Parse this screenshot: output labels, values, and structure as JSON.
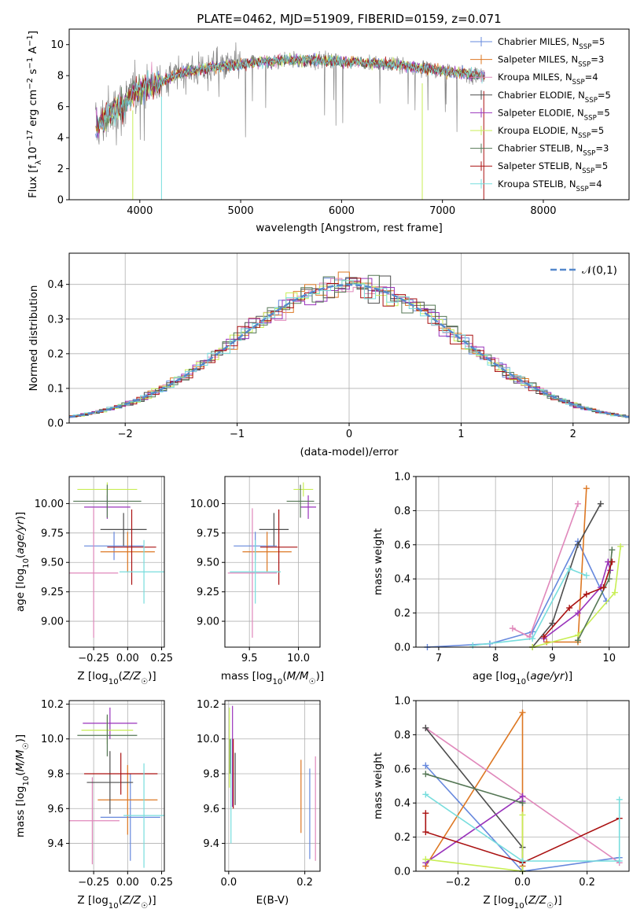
{
  "palette": {
    "chabrier_miles": "#6688dd",
    "salpeter_miles": "#dd7722",
    "kroupa_miles": "#e088bb",
    "chabrier_elodie": "#4d4d4d",
    "salpeter_elodie": "#9933bb",
    "kroupa_elodie": "#c8ee55",
    "chabrier_stelib": "#557755",
    "salpeter_stelib": "#aa1111",
    "kroupa_stelib": "#77dddd",
    "data_gray": "#888888",
    "normal": "#5588cc"
  },
  "chart_data": [
    {
      "id": "spectrum",
      "type": "line",
      "title": "PLATE=0462, MJD=51909, FIBERID=0159, z=0.071",
      "xlabel": "wavelength [Angstrom, rest frame]",
      "ylabel": "Flux [f_λ10^-17 erg cm^-2 s^-1 A^-1]",
      "xlim": [
        3300,
        8850
      ],
      "ylim": [
        0,
        11
      ],
      "xticks": [
        4000,
        5000,
        6000,
        7000,
        8000
      ],
      "yticks": [
        0,
        2,
        4,
        6,
        8,
        10
      ],
      "grid": false,
      "legend_position": "right",
      "legend": [
        {
          "key": "chabrier_miles",
          "label": "Chabrier MILES, N_SSP=5"
        },
        {
          "key": "salpeter_miles",
          "label": "Salpeter MILES, N_SSP=3"
        },
        {
          "key": "kroupa_miles",
          "label": "Kroupa MILES, N_SSP=4"
        },
        {
          "key": "chabrier_elodie",
          "label": "Chabrier ELODIE, N_SSP=5"
        },
        {
          "key": "salpeter_elodie",
          "label": "Salpeter ELODIE, N_SSP=5"
        },
        {
          "key": "kroupa_elodie",
          "label": "Kroupa ELODIE, N_SSP=5"
        },
        {
          "key": "chabrier_stelib",
          "label": "Chabrier STELIB, N_SSP=3"
        },
        {
          "key": "salpeter_stelib",
          "label": "Salpeter STELIB, N_SSP=5"
        },
        {
          "key": "kroupa_stelib",
          "label": "Kroupa STELIB, N_SSP=4"
        }
      ],
      "continuum": [
        [
          3560,
          4.6
        ],
        [
          3700,
          5.5
        ],
        [
          3850,
          6.2
        ],
        [
          3950,
          6.9
        ],
        [
          4050,
          7.3
        ],
        [
          4200,
          7.6
        ],
        [
          4400,
          8.2
        ],
        [
          4600,
          8.4
        ],
        [
          4800,
          8.6
        ],
        [
          5000,
          8.7
        ],
        [
          5200,
          8.9
        ],
        [
          5500,
          9.0
        ],
        [
          5800,
          9.0
        ],
        [
          6000,
          8.9
        ],
        [
          6300,
          8.8
        ],
        [
          6600,
          8.7
        ],
        [
          6900,
          8.4
        ],
        [
          7100,
          8.2
        ],
        [
          7300,
          8.1
        ],
        [
          7420,
          8.0
        ]
      ]
    },
    {
      "id": "residuals",
      "type": "histogram",
      "xlabel": "(data-model)/error",
      "ylabel": "Normed distribution",
      "xlim": [
        -2.5,
        2.5
      ],
      "ylim": [
        0,
        0.49
      ],
      "xticks": [
        -2,
        -1,
        0,
        1,
        2
      ],
      "yticks": [
        0.0,
        0.1,
        0.2,
        0.3,
        0.4
      ],
      "grid": true,
      "legend_position": "top-right",
      "legend_label": "𝒩(0,1)"
    },
    {
      "id": "age_vs_Z",
      "type": "errorbar",
      "xlabel": "Z [log10(Z/Z☉)]",
      "ylabel": "age [log10(age/yr)]",
      "xlim": [
        -0.43,
        0.27
      ],
      "ylim": [
        8.78,
        10.23
      ],
      "xticks": [
        -0.25,
        0.0,
        0.25
      ],
      "yticks": [
        9.0,
        9.25,
        9.5,
        9.75,
        10.0
      ],
      "grid": true,
      "points": [
        {
          "key": "chabrier_miles",
          "x": -0.1,
          "xerr": 0.22,
          "y": 9.64,
          "yerr": 0.12
        },
        {
          "key": "salpeter_miles",
          "x": 0.0,
          "xerr": 0.2,
          "y": 9.59,
          "yerr": 0.17
        },
        {
          "key": "kroupa_miles",
          "x": -0.25,
          "xerr": 0.18,
          "y": 9.41,
          "yerr": 0.55
        },
        {
          "key": "chabrier_elodie",
          "x": -0.03,
          "xerr": 0.17,
          "y": 9.78,
          "yerr": 0.14
        },
        {
          "key": "salpeter_elodie",
          "x": -0.15,
          "xerr": 0.17,
          "y": 9.97,
          "yerr": 0.1
        },
        {
          "key": "kroupa_elodie",
          "x": -0.15,
          "xerr": 0.22,
          "y": 10.12,
          "yerr": 0.06
        },
        {
          "key": "chabrier_stelib",
          "x": -0.15,
          "xerr": 0.25,
          "y": 10.02,
          "yerr": 0.14
        },
        {
          "key": "salpeter_stelib",
          "x": 0.03,
          "xerr": 0.18,
          "y": 9.63,
          "yerr": 0.32
        },
        {
          "key": "kroupa_stelib",
          "x": 0.12,
          "xerr": 0.18,
          "y": 9.42,
          "yerr": 0.27
        }
      ]
    },
    {
      "id": "age_vs_mass",
      "type": "errorbar",
      "xlabel": "mass [log10(M/M☉)]",
      "ylabel": "",
      "xlim": [
        9.25,
        10.22
      ],
      "ylim": [
        8.78,
        10.23
      ],
      "xticks": [
        9.5,
        10.0
      ],
      "yticks": [
        9.0,
        9.25,
        9.5,
        9.75,
        10.0
      ],
      "grid": true,
      "points": [
        {
          "key": "chabrier_miles",
          "x": 9.56,
          "xerr": 0.22,
          "y": 9.64,
          "yerr": 0.12
        },
        {
          "key": "salpeter_miles",
          "x": 9.68,
          "xerr": 0.25,
          "y": 9.59,
          "yerr": 0.17
        },
        {
          "key": "kroupa_miles",
          "x": 9.53,
          "xerr": 0.25,
          "y": 9.41,
          "yerr": 0.55
        },
        {
          "key": "chabrier_elodie",
          "x": 9.75,
          "xerr": 0.15,
          "y": 9.78,
          "yerr": 0.14
        },
        {
          "key": "salpeter_elodie",
          "x": 10.1,
          "xerr": 0.08,
          "y": 9.97,
          "yerr": 0.1
        },
        {
          "key": "kroupa_elodie",
          "x": 10.05,
          "xerr": 0.1,
          "y": 10.12,
          "yerr": 0.06
        },
        {
          "key": "chabrier_stelib",
          "x": 10.02,
          "xerr": 0.14,
          "y": 10.02,
          "yerr": 0.14
        },
        {
          "key": "salpeter_stelib",
          "x": 9.8,
          "xerr": 0.19,
          "y": 9.63,
          "yerr": 0.32
        },
        {
          "key": "kroupa_stelib",
          "x": 9.56,
          "xerr": 0.26,
          "y": 9.42,
          "yerr": 0.27
        }
      ]
    },
    {
      "id": "massweight_vs_age",
      "type": "line",
      "xlabel": "age [log10(age/yr)]",
      "ylabel": "mass weight",
      "xlim": [
        6.6,
        10.35
      ],
      "ylim": [
        0,
        1.0
      ],
      "xticks": [
        7,
        8,
        9,
        10
      ],
      "yticks": [
        0.0,
        0.2,
        0.4,
        0.6,
        0.8,
        1.0
      ],
      "grid": true,
      "series": [
        {
          "key": "chabrier_miles",
          "x": [
            6.8,
            7.9,
            8.65,
            9.45,
            9.95
          ],
          "y": [
            0.0,
            0.02,
            0.09,
            0.62,
            0.27
          ]
        },
        {
          "key": "salpeter_miles",
          "x": [
            8.9,
            9.45,
            9.6
          ],
          "y": [
            0.03,
            0.03,
            0.93
          ]
        },
        {
          "key": "kroupa_miles",
          "x": [
            8.3,
            8.6,
            9.45
          ],
          "y": [
            0.11,
            0.06,
            0.84
          ]
        },
        {
          "key": "chabrier_elodie",
          "x": [
            8.65,
            9.0,
            9.45,
            9.85
          ],
          "y": [
            0.0,
            0.14,
            0.6,
            0.84
          ]
        },
        {
          "key": "salpeter_elodie",
          "x": [
            8.85,
            9.45,
            9.85,
            9.98,
            10.02
          ],
          "y": [
            0.05,
            0.2,
            0.35,
            0.5,
            0.45
          ]
        },
        {
          "key": "kroupa_elodie",
          "x": [
            8.65,
            9.45,
            10.1,
            10.2
          ],
          "y": [
            0.0,
            0.07,
            0.32,
            0.59
          ]
        },
        {
          "key": "chabrier_stelib",
          "x": [
            9.45,
            10.0,
            10.05
          ],
          "y": [
            0.04,
            0.4,
            0.57
          ]
        },
        {
          "key": "salpeter_stelib",
          "x": [
            8.85,
            9.3,
            9.6,
            9.9,
            10.05
          ],
          "y": [
            0.06,
            0.23,
            0.31,
            0.35,
            0.5
          ]
        },
        {
          "key": "kroupa_stelib",
          "x": [
            7.6,
            8.65,
            9.3,
            9.6
          ],
          "y": [
            0.01,
            0.05,
            0.46,
            0.42
          ]
        }
      ]
    },
    {
      "id": "mass_vs_Z",
      "type": "errorbar",
      "xlabel": "Z [log10(Z/Z☉)]",
      "ylabel": "mass [log10(M/M☉)]",
      "xlim": [
        -0.43,
        0.27
      ],
      "ylim": [
        9.24,
        10.22
      ],
      "xticks": [
        -0.25,
        0.0,
        0.25
      ],
      "yticks": [
        9.4,
        9.6,
        9.8,
        10.0,
        10.2
      ],
      "grid": true,
      "points": [
        {
          "key": "chabrier_miles",
          "x": 0.02,
          "xerr": 0.22,
          "y": 9.55,
          "yerr": 0.25
        },
        {
          "key": "salpeter_miles",
          "x": 0.0,
          "xerr": 0.22,
          "y": 9.65,
          "yerr": 0.2
        },
        {
          "key": "kroupa_miles",
          "x": -0.26,
          "xerr": 0.2,
          "y": 9.53,
          "yerr": 0.25
        },
        {
          "key": "chabrier_elodie",
          "x": -0.13,
          "xerr": 0.17,
          "y": 9.75,
          "yerr": 0.18
        },
        {
          "key": "salpeter_elodie",
          "x": -0.13,
          "xerr": 0.2,
          "y": 10.09,
          "yerr": 0.09
        },
        {
          "key": "kroupa_elodie",
          "x": -0.15,
          "xerr": 0.19,
          "y": 10.05,
          "yerr": 0.08
        },
        {
          "key": "chabrier_stelib",
          "x": -0.15,
          "xerr": 0.22,
          "y": 10.02,
          "yerr": 0.12
        },
        {
          "key": "salpeter_stelib",
          "x": -0.05,
          "xerr": 0.27,
          "y": 9.8,
          "yerr": 0.12
        },
        {
          "key": "kroupa_stelib",
          "x": 0.12,
          "xerr": 0.15,
          "y": 9.56,
          "yerr": 0.3
        }
      ]
    },
    {
      "id": "mass_vs_EBV",
      "type": "errorbar",
      "xlabel": "E(B-V)",
      "ylabel": "",
      "xlim": [
        -0.01,
        0.24
      ],
      "ylim": [
        9.24,
        10.22
      ],
      "xticks": [
        0.0,
        0.2
      ],
      "yticks": [
        9.4,
        9.6,
        9.8,
        10.0,
        10.2
      ],
      "grid": true,
      "points": [
        {
          "key": "chabrier_miles",
          "x": 0.213,
          "xerr": 0,
          "y": 9.57,
          "yerr": 0.26
        },
        {
          "key": "salpeter_miles",
          "x": 0.19,
          "xerr": 0,
          "y": 9.67,
          "yerr": 0.21
        },
        {
          "key": "kroupa_miles",
          "x": 0.228,
          "xerr": 0,
          "y": 9.6,
          "yerr": 0.3
        },
        {
          "key": "chabrier_elodie",
          "x": 0.017,
          "xerr": 0,
          "y": 9.77,
          "yerr": 0.15
        },
        {
          "key": "salpeter_elodie",
          "x": 0.01,
          "xerr": 0,
          "y": 9.9,
          "yerr": 0.29
        },
        {
          "key": "kroupa_elodie",
          "x": 0.002,
          "xerr": 0,
          "y": 9.95,
          "yerr": 0.23
        },
        {
          "key": "chabrier_stelib",
          "x": 0.004,
          "xerr": 0,
          "y": 9.9,
          "yerr": 0.1
        },
        {
          "key": "salpeter_stelib",
          "x": 0.012,
          "xerr": 0,
          "y": 9.8,
          "yerr": 0.2
        },
        {
          "key": "kroupa_stelib",
          "x": 0.006,
          "xerr": 0,
          "y": 9.7,
          "yerr": 0.3
        }
      ]
    },
    {
      "id": "massweight_vs_Z",
      "type": "line",
      "xlabel": "Z [log10(Z/Z☉)]",
      "ylabel": "mass weight",
      "xlim": [
        -0.33,
        0.33
      ],
      "ylim": [
        0,
        1.0
      ],
      "xticks": [
        -0.2,
        0.0,
        0.2
      ],
      "yticks": [
        0.0,
        0.2,
        0.4,
        0.6,
        0.8,
        1.0
      ],
      "grid": true,
      "series": [
        {
          "key": "chabrier_miles",
          "x": [
            -0.3,
            0.0,
            0.3
          ],
          "y": [
            0.62,
            0.0,
            0.08
          ]
        },
        {
          "key": "salpeter_miles",
          "x": [
            -0.3,
            0.0,
            0.0
          ],
          "y": [
            0.03,
            0.93,
            0.03
          ]
        },
        {
          "key": "kroupa_miles",
          "x": [
            -0.3,
            0.3
          ],
          "y": [
            0.84,
            0.05
          ]
        },
        {
          "key": "chabrier_elodie",
          "x": [
            -0.3,
            0.0,
            0.0
          ],
          "y": [
            0.84,
            0.14,
            0.0
          ]
        },
        {
          "key": "salpeter_elodie",
          "x": [
            -0.3,
            0.0,
            0.0
          ],
          "y": [
            0.05,
            0.44,
            0.41
          ]
        },
        {
          "key": "kroupa_elodie",
          "x": [
            -0.3,
            0.0,
            0.0
          ],
          "y": [
            0.07,
            0.0,
            0.33
          ]
        },
        {
          "key": "chabrier_stelib",
          "x": [
            -0.3,
            0.0
          ],
          "y": [
            0.57,
            0.4
          ]
        },
        {
          "key": "salpeter_stelib",
          "x": [
            -0.3,
            -0.3,
            0.0,
            0.3
          ],
          "y": [
            0.34,
            0.23,
            0.05,
            0.31
          ]
        },
        {
          "key": "kroupa_stelib",
          "x": [
            -0.3,
            0.0,
            0.3,
            0.3
          ],
          "y": [
            0.45,
            0.06,
            0.06,
            0.42
          ]
        }
      ]
    }
  ]
}
